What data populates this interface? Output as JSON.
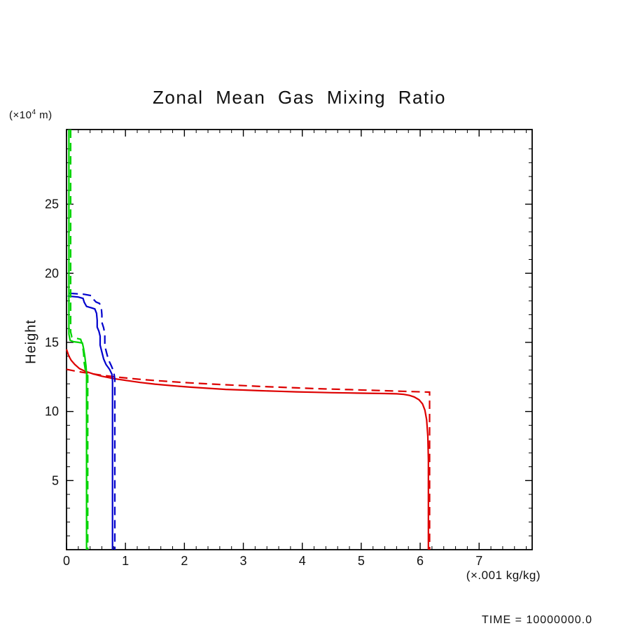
{
  "labels": {
    "y_unit_prefix": "(×10",
    "y_unit_sup": "4",
    "y_unit_suffix": " m)",
    "x_unit": "(×.001 kg/kg)",
    "time": "TIME = 10000000.0"
  },
  "chart_data": {
    "type": "line",
    "title": "Zonal Mean Gas Mixing Ratio",
    "xlabel": "(×.001 kg/kg)",
    "ylabel": "Height",
    "y_axis_factor": "(×10⁴ m)",
    "annotation": "TIME = 10000000.0",
    "xlim": [
      0,
      7.9
    ],
    "ylim": [
      0,
      30.4
    ],
    "xticks": [
      0,
      1,
      2,
      3,
      4,
      5,
      6,
      7
    ],
    "yticks": [
      5,
      10,
      15,
      20,
      25
    ],
    "x_minor_step": 0.2,
    "y_minor_step": 1,
    "grid": false,
    "legend": "none",
    "frame_color": "#000000",
    "series": [
      {
        "name": "red-solid",
        "color": "#dd0000",
        "style": "solid",
        "points": [
          [
            0.0,
            14.5
          ],
          [
            0.04,
            14.0
          ],
          [
            0.08,
            13.7
          ],
          [
            0.14,
            13.4
          ],
          [
            0.22,
            13.1
          ],
          [
            0.32,
            12.9
          ],
          [
            0.45,
            12.72
          ],
          [
            0.6,
            12.55
          ],
          [
            0.8,
            12.38
          ],
          [
            1.0,
            12.25
          ],
          [
            1.25,
            12.1
          ],
          [
            1.5,
            11.98
          ],
          [
            1.8,
            11.86
          ],
          [
            2.1,
            11.76
          ],
          [
            2.4,
            11.68
          ],
          [
            2.7,
            11.6
          ],
          [
            3.0,
            11.55
          ],
          [
            3.3,
            11.5
          ],
          [
            3.6,
            11.46
          ],
          [
            3.9,
            11.42
          ],
          [
            4.2,
            11.39
          ],
          [
            4.5,
            11.36
          ],
          [
            4.8,
            11.34
          ],
          [
            5.1,
            11.32
          ],
          [
            5.4,
            11.3
          ],
          [
            5.6,
            11.28
          ],
          [
            5.72,
            11.24
          ],
          [
            5.82,
            11.16
          ],
          [
            5.9,
            11.05
          ],
          [
            5.98,
            10.85
          ],
          [
            6.04,
            10.55
          ],
          [
            6.08,
            10.1
          ],
          [
            6.11,
            9.4
          ],
          [
            6.13,
            8.2
          ],
          [
            6.14,
            6.5
          ],
          [
            6.14,
            0.0
          ]
        ]
      },
      {
        "name": "red-dashed",
        "color": "#dd0000",
        "style": "dashed",
        "points": [
          [
            0.0,
            13.05
          ],
          [
            0.15,
            12.92
          ],
          [
            0.35,
            12.78
          ],
          [
            0.6,
            12.62
          ],
          [
            0.9,
            12.47
          ],
          [
            1.2,
            12.34
          ],
          [
            1.5,
            12.24
          ],
          [
            1.8,
            12.15
          ],
          [
            2.1,
            12.07
          ],
          [
            2.4,
            12.0
          ],
          [
            2.7,
            11.93
          ],
          [
            3.0,
            11.87
          ],
          [
            3.3,
            11.81
          ],
          [
            3.6,
            11.76
          ],
          [
            3.9,
            11.71
          ],
          [
            4.2,
            11.66
          ],
          [
            4.5,
            11.62
          ],
          [
            4.8,
            11.58
          ],
          [
            5.1,
            11.54
          ],
          [
            5.4,
            11.5
          ],
          [
            5.7,
            11.46
          ],
          [
            6.0,
            11.42
          ],
          [
            6.16,
            11.4
          ],
          [
            6.16,
            0.0
          ]
        ]
      },
      {
        "name": "blue-solid",
        "color": "#0000cd",
        "style": "solid",
        "points": [
          [
            0.02,
            18.35
          ],
          [
            0.2,
            18.28
          ],
          [
            0.28,
            18.18
          ],
          [
            0.3,
            17.9
          ],
          [
            0.34,
            17.6
          ],
          [
            0.42,
            17.5
          ],
          [
            0.48,
            17.42
          ],
          [
            0.51,
            17.1
          ],
          [
            0.52,
            16.6
          ],
          [
            0.52,
            16.1
          ],
          [
            0.55,
            15.8
          ],
          [
            0.57,
            15.45
          ],
          [
            0.57,
            14.8
          ],
          [
            0.6,
            14.3
          ],
          [
            0.63,
            13.8
          ],
          [
            0.67,
            13.4
          ],
          [
            0.73,
            13.05
          ],
          [
            0.77,
            12.7
          ],
          [
            0.78,
            12.2
          ],
          [
            0.78,
            0.0
          ]
        ]
      },
      {
        "name": "blue-dashed",
        "color": "#0000cd",
        "style": "dashed",
        "points": [
          [
            0.05,
            18.55
          ],
          [
            0.3,
            18.48
          ],
          [
            0.42,
            18.38
          ],
          [
            0.45,
            18.15
          ],
          [
            0.5,
            17.92
          ],
          [
            0.56,
            17.82
          ],
          [
            0.59,
            17.5
          ],
          [
            0.6,
            17.0
          ],
          [
            0.6,
            16.45
          ],
          [
            0.63,
            16.05
          ],
          [
            0.65,
            15.6
          ],
          [
            0.65,
            14.75
          ],
          [
            0.68,
            14.25
          ],
          [
            0.71,
            13.75
          ],
          [
            0.76,
            13.3
          ],
          [
            0.8,
            12.9
          ],
          [
            0.82,
            12.35
          ],
          [
            0.82,
            0.0
          ]
        ]
      },
      {
        "name": "green-solid",
        "color": "#00d400",
        "style": "solid",
        "points": [
          [
            0.04,
            30.4
          ],
          [
            0.04,
            15.6
          ],
          [
            0.06,
            15.15
          ],
          [
            0.12,
            15.05
          ],
          [
            0.2,
            15.0
          ],
          [
            0.27,
            14.95
          ],
          [
            0.29,
            14.55
          ],
          [
            0.31,
            14.0
          ],
          [
            0.33,
            13.3
          ],
          [
            0.34,
            12.75
          ],
          [
            0.34,
            0.0
          ]
        ]
      },
      {
        "name": "green-dashed",
        "color": "#00d400",
        "style": "dashed",
        "points": [
          [
            0.07,
            30.4
          ],
          [
            0.07,
            15.75
          ],
          [
            0.09,
            15.4
          ],
          [
            0.16,
            15.3
          ],
          [
            0.24,
            15.22
          ],
          [
            0.27,
            14.85
          ],
          [
            0.29,
            14.2
          ],
          [
            0.3,
            13.5
          ],
          [
            0.32,
            13.0
          ],
          [
            0.36,
            12.6
          ],
          [
            0.36,
            0.0
          ]
        ]
      }
    ]
  }
}
